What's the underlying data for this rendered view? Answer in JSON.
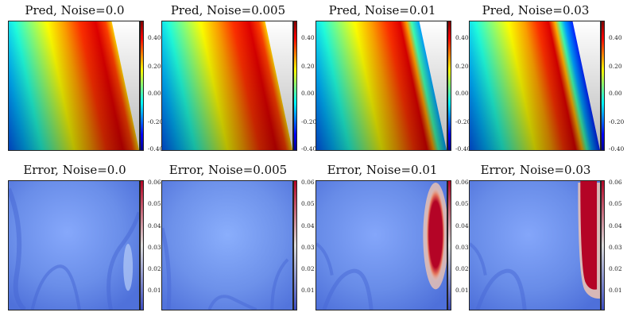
{
  "chart_data": [
    {
      "type": "heatmap",
      "title": "Pred, Noise=0.0",
      "colormap": "jet",
      "colorbar_ticks": [
        "0.40",
        "0.20",
        "0.00",
        "-0.20",
        "-0.40"
      ],
      "colorbar_values": [
        0.4,
        0.2,
        0.0,
        -0.2,
        -0.4
      ],
      "clim": [
        -0.47,
        0.47
      ],
      "noise": 0.0
    },
    {
      "type": "heatmap",
      "title": "Pred, Noise=0.005",
      "colormap": "jet",
      "colorbar_ticks": [
        "0.40",
        "0.20",
        "0.00",
        "-0.20",
        "-0.40"
      ],
      "colorbar_values": [
        0.4,
        0.2,
        0.0,
        -0.2,
        -0.4
      ],
      "clim": [
        -0.47,
        0.47
      ],
      "noise": 0.005
    },
    {
      "type": "heatmap",
      "title": "Pred, Noise=0.01",
      "colormap": "jet",
      "colorbar_ticks": [
        "0.40",
        "0.20",
        "0.00",
        "-0.20",
        "-0.40"
      ],
      "colorbar_values": [
        0.4,
        0.2,
        0.0,
        -0.2,
        -0.4
      ],
      "clim": [
        -0.47,
        0.47
      ],
      "noise": 0.01
    },
    {
      "type": "heatmap",
      "title": "Pred, Noise=0.03",
      "colormap": "jet",
      "colorbar_ticks": [
        "0.40",
        "0.20",
        "0.00",
        "-0.20",
        "-0.40"
      ],
      "colorbar_values": [
        0.4,
        0.2,
        0.0,
        -0.2,
        -0.4
      ],
      "clim": [
        -0.47,
        0.47
      ],
      "noise": 0.03
    },
    {
      "type": "heatmap",
      "title": "Error, Noise=0.0",
      "colormap": "coolwarm",
      "colorbar_ticks": [
        "0.06",
        "0.05",
        "0.04",
        "0.03",
        "0.02",
        "0.01"
      ],
      "colorbar_values": [
        0.06,
        0.05,
        0.04,
        0.03,
        0.02,
        0.01
      ],
      "clim": [
        0.0,
        0.06
      ],
      "noise": 0.0
    },
    {
      "type": "heatmap",
      "title": "Error, Noise=0.005",
      "colormap": "coolwarm",
      "colorbar_ticks": [
        "0.06",
        "0.05",
        "0.04",
        "0.03",
        "0.02",
        "0.01"
      ],
      "colorbar_values": [
        0.06,
        0.05,
        0.04,
        0.03,
        0.02,
        0.01
      ],
      "clim": [
        0.0,
        0.06
      ],
      "noise": 0.005
    },
    {
      "type": "heatmap",
      "title": "Error, Noise=0.01",
      "colormap": "coolwarm",
      "colorbar_ticks": [
        "0.06",
        "0.05",
        "0.04",
        "0.03",
        "0.02",
        "0.01"
      ],
      "colorbar_values": [
        0.06,
        0.05,
        0.04,
        0.03,
        0.02,
        0.01
      ],
      "clim": [
        0.0,
        0.06
      ],
      "noise": 0.01
    },
    {
      "type": "heatmap",
      "title": "Error, Noise=0.03",
      "colormap": "coolwarm",
      "colorbar_ticks": [
        "0.06",
        "0.05",
        "0.04",
        "0.03",
        "0.02",
        "0.01"
      ],
      "colorbar_values": [
        0.06,
        0.05,
        0.04,
        0.03,
        0.02,
        0.01
      ],
      "clim": [
        0.0,
        0.06
      ],
      "noise": 0.03
    }
  ]
}
